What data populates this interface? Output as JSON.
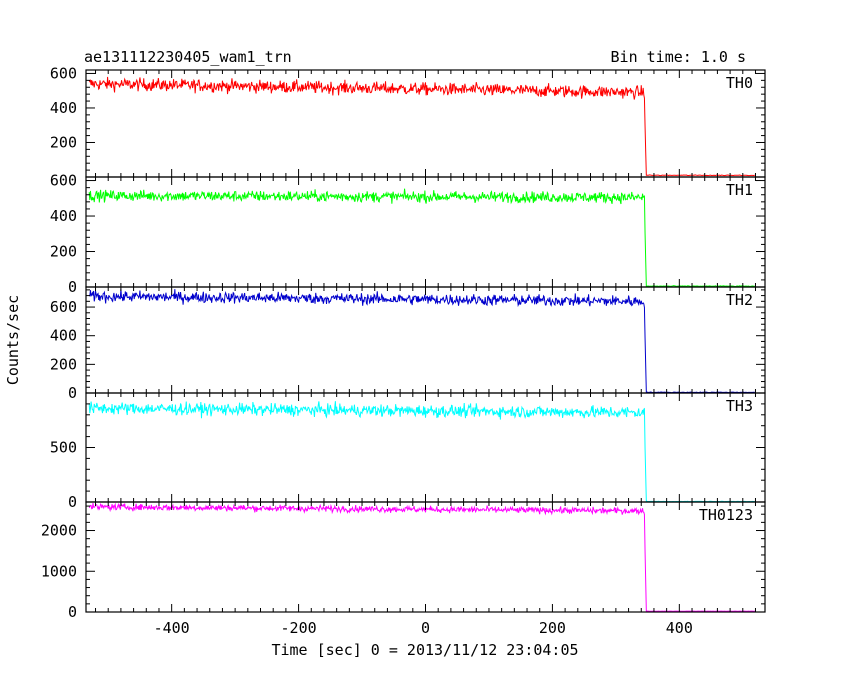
{
  "header": {
    "title": "ae131112230405_wam1_trn",
    "bin_time": "Bin time: 1.0 s"
  },
  "chart_data": {
    "type": "line",
    "xlabel": "Time [sec] 0 = 2013/11/12 23:04:05",
    "ylabel": "Counts/sec",
    "xlim": [
      -535,
      535
    ],
    "x_ticks": [
      -400,
      -200,
      0,
      200,
      400
    ],
    "drop_time": 345,
    "data_start": -530,
    "data_end": 520,
    "panels": [
      {
        "name": "TH0",
        "color": "#ff0000",
        "ylim": [
          0,
          620
        ],
        "yticks": [
          200,
          400,
          600
        ],
        "level_start": 540,
        "level_end": 490,
        "noise": 26,
        "post_level": 10
      },
      {
        "name": "TH1",
        "color": "#00ff00",
        "ylim": [
          0,
          620
        ],
        "yticks": [
          0,
          200,
          400,
          600
        ],
        "level_start": 515,
        "level_end": 505,
        "noise": 22,
        "post_level": 5
      },
      {
        "name": "TH2",
        "color": "#0000cc",
        "ylim": [
          0,
          740
        ],
        "yticks": [
          0,
          200,
          400,
          600
        ],
        "level_start": 675,
        "level_end": 640,
        "noise": 28,
        "post_level": 5
      },
      {
        "name": "TH3",
        "color": "#00ffff",
        "ylim": [
          0,
          1000
        ],
        "yticks": [
          0,
          500
        ],
        "level_start": 860,
        "level_end": 820,
        "noise": 40,
        "post_level": 5
      },
      {
        "name": "TH0123",
        "color": "#ff00ff",
        "ylim": [
          0,
          2700
        ],
        "yticks": [
          0,
          1000,
          2000
        ],
        "level_start": 2580,
        "level_end": 2480,
        "noise": 55,
        "post_level": 20
      }
    ]
  }
}
